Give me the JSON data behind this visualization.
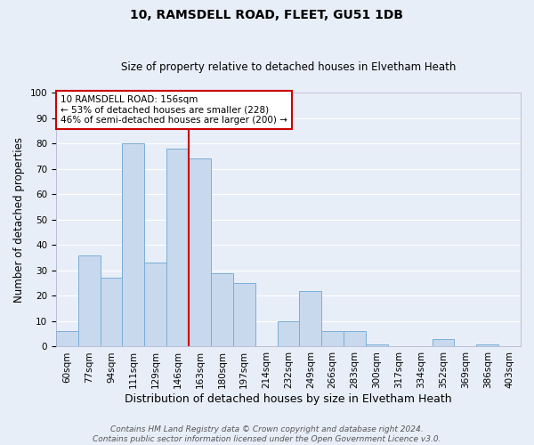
{
  "title": "10, RAMSDELL ROAD, FLEET, GU51 1DB",
  "subtitle": "Size of property relative to detached houses in Elvetham Heath",
  "xlabel": "Distribution of detached houses by size in Elvetham Heath",
  "ylabel": "Number of detached properties",
  "bin_labels": [
    "60sqm",
    "77sqm",
    "94sqm",
    "111sqm",
    "129sqm",
    "146sqm",
    "163sqm",
    "180sqm",
    "197sqm",
    "214sqm",
    "232sqm",
    "249sqm",
    "266sqm",
    "283sqm",
    "300sqm",
    "317sqm",
    "334sqm",
    "352sqm",
    "369sqm",
    "386sqm",
    "403sqm"
  ],
  "bar_values": [
    6,
    36,
    27,
    80,
    33,
    78,
    74,
    29,
    25,
    0,
    10,
    22,
    6,
    6,
    1,
    0,
    0,
    3,
    0,
    1,
    0
  ],
  "bar_color": "#c8d9ee",
  "bar_edge_color": "#7aaed6",
  "vline_color": "#cc0000",
  "annotation_title": "10 RAMSDELL ROAD: 156sqm",
  "annotation_line1": "← 53% of detached houses are smaller (228)",
  "annotation_line2": "46% of semi-detached houses are larger (200) →",
  "annotation_box_color": "#ffffff",
  "annotation_box_edge_color": "#cc0000",
  "footer1": "Contains HM Land Registry data © Crown copyright and database right 2024.",
  "footer2": "Contains public sector information licensed under the Open Government Licence v3.0.",
  "ylim": [
    0,
    100
  ],
  "bg_color": "#e8eef8",
  "plot_bg_color": "#e8eef8",
  "grid_color": "#ffffff",
  "title_fontsize": 10,
  "subtitle_fontsize": 8.5,
  "xlabel_fontsize": 9,
  "ylabel_fontsize": 8.5,
  "tick_fontsize": 7.5,
  "annotation_fontsize": 7.5,
  "footer_fontsize": 6.5
}
